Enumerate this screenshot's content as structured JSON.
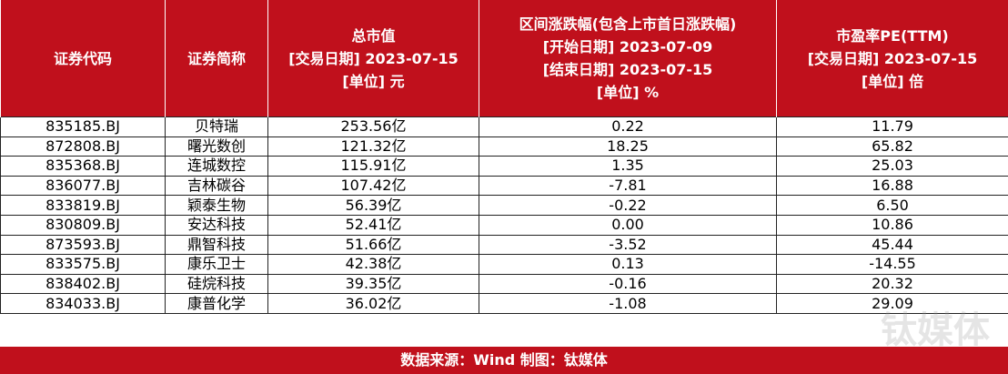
{
  "table": {
    "header": [
      [
        "证券代码"
      ],
      [
        "证券简称"
      ],
      [
        "总市值",
        "[交易日期] 2023-07-15",
        "[单位] 元"
      ],
      [
        "区间涨跌幅(包含上市首日涨跌幅)",
        "[开始日期] 2023-07-09",
        "[结束日期] 2023-07-15",
        "[单位] %"
      ],
      [
        "市盈率PE(TTM)",
        "[交易日期] 2023-07-15",
        "[单位] 倍"
      ]
    ],
    "rows": [
      [
        "835185.BJ",
        "贝特瑞",
        "253.56亿",
        "0.22",
        "11.79"
      ],
      [
        "872808.BJ",
        "曙光数创",
        "121.32亿",
        "18.25",
        "65.82"
      ],
      [
        "835368.BJ",
        "连城数控",
        "115.91亿",
        "1.35",
        "25.03"
      ],
      [
        "836077.BJ",
        "吉林碳谷",
        "107.42亿",
        "-7.81",
        "16.88"
      ],
      [
        "833819.BJ",
        "颖泰生物",
        "56.39亿",
        "-0.22",
        "6.50"
      ],
      [
        "830809.BJ",
        "安达科技",
        "52.41亿",
        "0.00",
        "10.86"
      ],
      [
        "873593.BJ",
        "鼎智科技",
        "51.66亿",
        "-3.52",
        "45.44"
      ],
      [
        "833575.BJ",
        "康乐卫士",
        "42.38亿",
        "0.13",
        "-14.55"
      ],
      [
        "838402.BJ",
        "硅烷科技",
        "39.35亿",
        "-0.16",
        "20.32"
      ],
      [
        "834033.BJ",
        "康普化学",
        "36.02亿",
        "-1.08",
        "29.09"
      ]
    ]
  },
  "footer": "数据来源：Wind 制图：钛媒体",
  "watermark": "钛媒体"
}
